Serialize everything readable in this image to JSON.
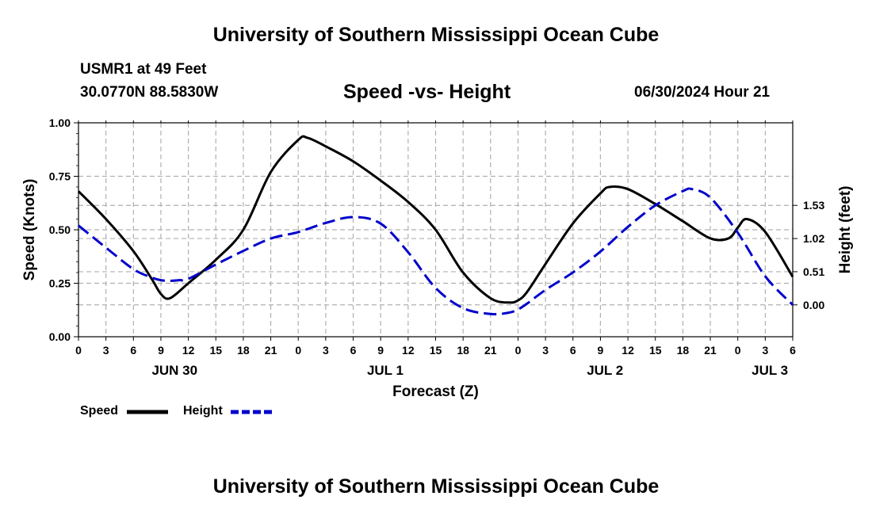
{
  "header": {
    "title": "University of Southern Mississippi Ocean Cube",
    "station": "USMR1 at 49 Feet",
    "coords": "30.0770N  88.5830W",
    "subtitle": "Speed -vs- Height",
    "datetime": "06/30/2024 Hour 21"
  },
  "footer": {
    "title": "University of Southern Mississippi Ocean Cube"
  },
  "legend": {
    "speed": "Speed",
    "height": "Height"
  },
  "colors": {
    "speed": "#000000",
    "height": "#0000cc",
    "grid": "#b0b0b0"
  },
  "chart_data": {
    "type": "line",
    "xlabel": "Forecast (Z)",
    "ylabel_left": "Speed (Knots)",
    "ylabel_right": "Height (feet)",
    "x_range_hours": [
      0,
      78
    ],
    "x_tick_step_hours": 3,
    "x_tick_labels": [
      "0",
      "3",
      "6",
      "9",
      "12",
      "15",
      "18",
      "21",
      "0",
      "3",
      "6",
      "9",
      "12",
      "15",
      "18",
      "21",
      "0",
      "3",
      "6",
      "9",
      "12",
      "15",
      "18",
      "21",
      "0",
      "3",
      "6"
    ],
    "day_labels": [
      {
        "label": "JUN 30",
        "hour": 10.5
      },
      {
        "label": "JUL 1",
        "hour": 33.5
      },
      {
        "label": "JUL 2",
        "hour": 57.5
      },
      {
        "label": "JUL 3",
        "hour": 75.5
      }
    ],
    "ylim_left": [
      0,
      1
    ],
    "yticks_left": [
      "0.00",
      "0.25",
      "0.50",
      "0.75",
      "1.00"
    ],
    "ylim_right": [
      -0.49,
      2.8
    ],
    "yticks_right": [
      "0.00",
      "0.51",
      "1.02",
      "1.53"
    ],
    "series": [
      {
        "name": "Speed",
        "axis": "left",
        "style": "solid",
        "x": [
          0,
          3,
          6,
          8,
          9,
          10,
          12,
          15,
          18,
          21,
          24,
          25,
          27,
          30,
          33,
          36,
          39,
          42,
          45,
          47,
          48,
          49,
          51,
          54,
          57,
          58,
          60,
          63,
          66,
          69,
          71,
          72,
          73,
          75,
          78
        ],
        "y": [
          0.68,
          0.55,
          0.4,
          0.27,
          0.2,
          0.18,
          0.25,
          0.36,
          0.5,
          0.77,
          0.92,
          0.93,
          0.89,
          0.82,
          0.73,
          0.63,
          0.5,
          0.3,
          0.18,
          0.16,
          0.17,
          0.21,
          0.34,
          0.53,
          0.67,
          0.7,
          0.69,
          0.62,
          0.54,
          0.46,
          0.46,
          0.51,
          0.55,
          0.49,
          0.28
        ]
      },
      {
        "name": "Height",
        "axis": "right",
        "style": "dashed",
        "x": [
          0,
          3,
          6,
          8,
          9,
          10,
          11,
          12,
          15,
          18,
          21,
          24,
          27,
          30,
          33,
          36,
          39,
          42,
          45,
          47,
          48,
          49,
          51,
          54,
          57,
          60,
          63,
          66,
          67,
          69,
          72,
          75,
          78
        ],
        "y": [
          1.22,
          0.88,
          0.55,
          0.42,
          0.38,
          0.37,
          0.38,
          0.4,
          0.62,
          0.83,
          1.02,
          1.12,
          1.26,
          1.35,
          1.25,
          0.81,
          0.26,
          -0.05,
          -0.14,
          -0.12,
          -0.07,
          0.02,
          0.23,
          0.5,
          0.82,
          1.2,
          1.53,
          1.75,
          1.78,
          1.65,
          1.11,
          0.44,
          0.0
        ]
      }
    ]
  }
}
